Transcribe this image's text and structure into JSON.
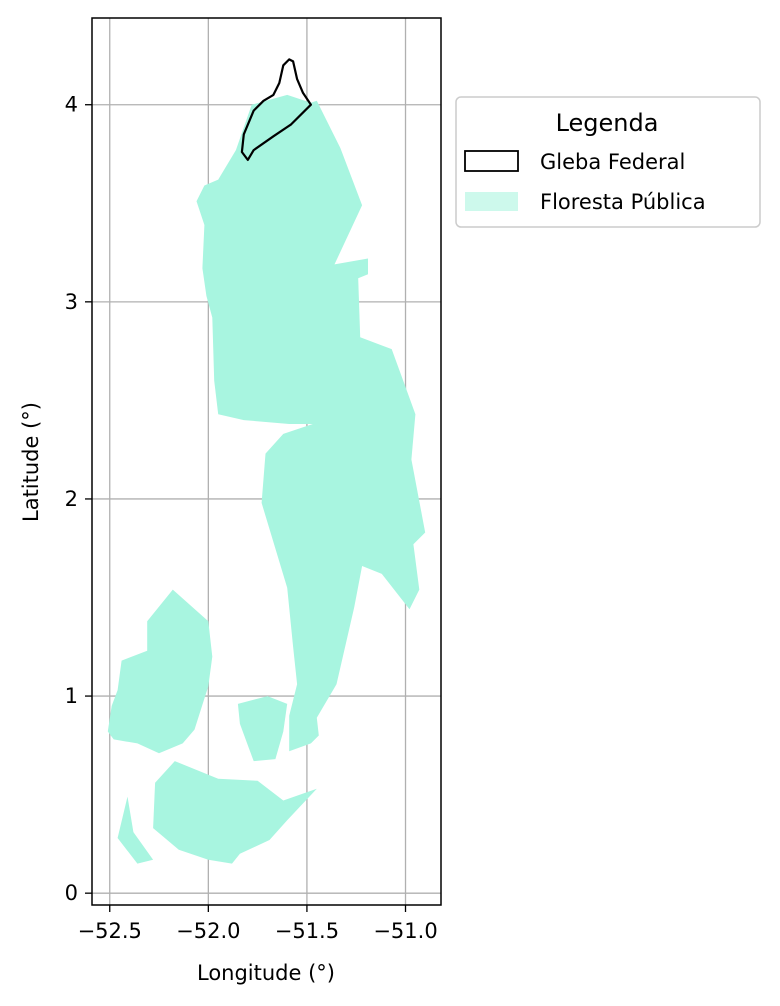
{
  "chart_data": {
    "type": "map",
    "xlabel": "Longitude (°)",
    "ylabel": "Latitude (°)",
    "xlim": [
      -52.59,
      -50.82
    ],
    "ylim": [
      -0.06,
      4.44
    ],
    "x_ticks": [
      -52.5,
      -52.0,
      -51.5,
      -51.0
    ],
    "x_tick_labels": [
      "−52.5",
      "−52.0",
      "−51.5",
      "−51.0"
    ],
    "y_ticks": [
      0,
      1,
      2,
      3,
      4
    ],
    "y_tick_labels": [
      "0",
      "1",
      "2",
      "3",
      "4"
    ],
    "grid": true,
    "legend": {
      "title": "Legenda",
      "placement": "outside-upper-right",
      "entries": [
        {
          "label": "Gleba Federal",
          "style": "outline",
          "color": "#000000"
        },
        {
          "label": "Floresta Pública",
          "style": "fill",
          "color": "#a8f5e0"
        }
      ]
    },
    "layers": [
      {
        "name": "Floresta Pública",
        "fill": "#a8f5e0",
        "polygons": [
          [
            [
              -51.78,
              4.0
            ],
            [
              -51.6,
              4.05
            ],
            [
              -51.48,
              4.01
            ],
            [
              -51.45,
              4.02
            ],
            [
              -51.33,
              3.78
            ],
            [
              -51.22,
              3.49
            ],
            [
              -51.36,
              3.19
            ],
            [
              -51.19,
              3.22
            ],
            [
              -51.19,
              3.14
            ],
            [
              -51.24,
              3.12
            ],
            [
              -51.23,
              2.82
            ],
            [
              -51.07,
              2.76
            ],
            [
              -50.95,
              2.43
            ],
            [
              -50.97,
              2.2
            ],
            [
              -50.9,
              1.83
            ],
            [
              -50.96,
              1.77
            ],
            [
              -50.93,
              1.54
            ],
            [
              -50.98,
              1.44
            ],
            [
              -51.12,
              1.62
            ],
            [
              -51.22,
              1.66
            ],
            [
              -51.26,
              1.45
            ],
            [
              -51.35,
              1.06
            ],
            [
              -51.45,
              0.89
            ],
            [
              -51.44,
              0.8
            ],
            [
              -51.48,
              0.76
            ],
            [
              -51.59,
              0.72
            ],
            [
              -51.59,
              0.9
            ],
            [
              -51.55,
              1.06
            ],
            [
              -51.57,
              1.25
            ],
            [
              -51.6,
              1.55
            ],
            [
              -51.73,
              1.98
            ],
            [
              -51.71,
              2.23
            ],
            [
              -51.62,
              2.33
            ],
            [
              -51.47,
              2.38
            ],
            [
              -51.59,
              2.38
            ],
            [
              -51.82,
              2.4
            ],
            [
              -51.95,
              2.43
            ],
            [
              -51.97,
              2.6
            ],
            [
              -51.98,
              2.92
            ],
            [
              -52.01,
              3.03
            ],
            [
              -52.03,
              3.17
            ],
            [
              -52.02,
              3.39
            ],
            [
              -52.06,
              3.51
            ],
            [
              -52.02,
              3.59
            ],
            [
              -51.95,
              3.62
            ],
            [
              -51.86,
              3.77
            ]
          ],
          [
            [
              -52.18,
              1.54
            ],
            [
              -52.0,
              1.38
            ],
            [
              -51.98,
              1.2
            ],
            [
              -52.0,
              1.05
            ],
            [
              -52.07,
              0.83
            ],
            [
              -52.13,
              0.76
            ],
            [
              -52.25,
              0.71
            ],
            [
              -52.36,
              0.76
            ],
            [
              -52.48,
              0.78
            ],
            [
              -52.51,
              0.82
            ],
            [
              -52.49,
              0.95
            ],
            [
              -52.46,
              1.03
            ],
            [
              -52.44,
              1.18
            ],
            [
              -52.31,
              1.23
            ],
            [
              -52.31,
              1.38
            ]
          ],
          [
            [
              -52.17,
              0.67
            ],
            [
              -51.95,
              0.58
            ],
            [
              -51.75,
              0.57
            ],
            [
              -51.62,
              0.47
            ],
            [
              -51.45,
              0.53
            ],
            [
              -51.6,
              0.37
            ],
            [
              -51.69,
              0.27
            ],
            [
              -51.84,
              0.2
            ],
            [
              -51.88,
              0.15
            ],
            [
              -52.0,
              0.17
            ],
            [
              -52.15,
              0.22
            ],
            [
              -52.28,
              0.33
            ],
            [
              -52.27,
              0.56
            ]
          ],
          [
            [
              -52.41,
              0.49
            ],
            [
              -52.38,
              0.31
            ],
            [
              -52.28,
              0.17
            ],
            [
              -52.36,
              0.15
            ],
            [
              -52.46,
              0.28
            ]
          ],
          [
            [
              -51.85,
              0.96
            ],
            [
              -51.7,
              1.0
            ],
            [
              -51.6,
              0.96
            ],
            [
              -51.62,
              0.82
            ],
            [
              -51.66,
              0.68
            ],
            [
              -51.77,
              0.67
            ],
            [
              -51.8,
              0.75
            ],
            [
              -51.84,
              0.86
            ]
          ]
        ]
      },
      {
        "name": "Gleba Federal",
        "outline": "#000000",
        "polygons": [
          [
            [
              -51.8,
              3.72
            ],
            [
              -51.77,
              3.77
            ],
            [
              -51.67,
              3.84
            ],
            [
              -51.58,
              3.9
            ],
            [
              -51.48,
              4.0
            ],
            [
              -51.52,
              4.06
            ],
            [
              -51.55,
              4.13
            ],
            [
              -51.57,
              4.22
            ],
            [
              -51.59,
              4.23
            ],
            [
              -51.62,
              4.2
            ],
            [
              -51.64,
              4.11
            ],
            [
              -51.67,
              4.05
            ],
            [
              -51.72,
              4.02
            ],
            [
              -51.77,
              3.97
            ],
            [
              -51.82,
              3.85
            ],
            [
              -51.83,
              3.76
            ]
          ]
        ]
      }
    ]
  }
}
